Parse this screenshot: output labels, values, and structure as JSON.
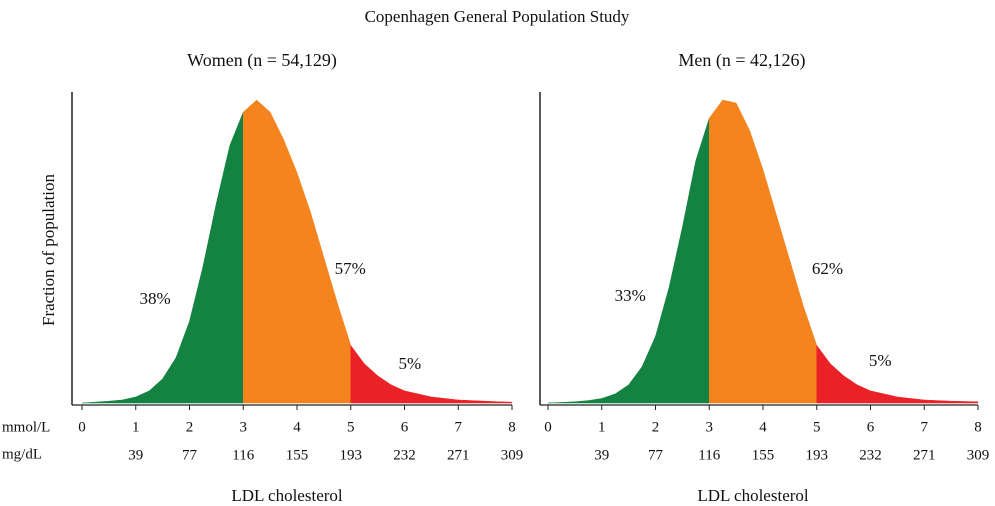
{
  "title": "Copenhagen General Population Study",
  "chart_data": [
    {
      "type": "area",
      "title": "Women (n = 54,129)",
      "y_label": "Fraction of population",
      "x_label": "LDL cholesterol",
      "x_unit_label": "mmol/L",
      "secondary_label": "mg/dL",
      "x": [
        0,
        0.25,
        0.5,
        0.75,
        1,
        1.25,
        1.5,
        1.75,
        2,
        2.25,
        2.5,
        2.75,
        3,
        3.25,
        3.5,
        3.75,
        4,
        4.25,
        4.5,
        4.75,
        5,
        5.25,
        5.5,
        5.75,
        6,
        6.25,
        6.5,
        6.75,
        7,
        7.25,
        7.5,
        7.75,
        8
      ],
      "values": [
        0,
        0.003,
        0.006,
        0.01,
        0.02,
        0.04,
        0.08,
        0.15,
        0.27,
        0.45,
        0.66,
        0.85,
        0.96,
        1.0,
        0.96,
        0.87,
        0.76,
        0.63,
        0.48,
        0.33,
        0.19,
        0.13,
        0.09,
        0.06,
        0.04,
        0.03,
        0.02,
        0.015,
        0.01,
        0.008,
        0.006,
        0.004,
        0.003
      ],
      "regions": [
        {
          "from": 0,
          "to": 3,
          "color": "#148241",
          "value": 38,
          "value_label": "38%"
        },
        {
          "from": 3,
          "to": 5,
          "color": "#f5841f",
          "value": 57,
          "value_label": "57%"
        },
        {
          "from": 5,
          "to": 8,
          "color": "#ea2227",
          "value": 5,
          "value_label": "5%"
        }
      ],
      "xlim": [
        0,
        8
      ],
      "xticks": [
        0,
        1,
        2,
        3,
        4,
        5,
        6,
        7,
        8
      ],
      "ylim": [
        0,
        1
      ],
      "secondary_ticks": [
        39,
        77,
        116,
        155,
        193,
        232,
        271,
        309
      ]
    },
    {
      "type": "area",
      "title": "Men (n = 42,126)",
      "x_label": "LDL cholesterol",
      "x": [
        0,
        0.25,
        0.5,
        0.75,
        1,
        1.25,
        1.5,
        1.75,
        2,
        2.25,
        2.5,
        2.75,
        3,
        3.25,
        3.5,
        3.75,
        4,
        4.25,
        4.5,
        4.75,
        5,
        5.25,
        5.5,
        5.75,
        6,
        6.25,
        6.5,
        6.75,
        7,
        7.25,
        7.5,
        7.75,
        8
      ],
      "values": [
        0,
        0.002,
        0.004,
        0.008,
        0.015,
        0.03,
        0.06,
        0.12,
        0.22,
        0.38,
        0.58,
        0.8,
        0.94,
        1.0,
        0.99,
        0.9,
        0.77,
        0.62,
        0.47,
        0.32,
        0.19,
        0.13,
        0.09,
        0.06,
        0.04,
        0.03,
        0.02,
        0.015,
        0.01,
        0.008,
        0.006,
        0.005,
        0.004
      ],
      "regions": [
        {
          "from": 0,
          "to": 3,
          "color": "#148241",
          "value": 33,
          "value_label": "33%"
        },
        {
          "from": 3,
          "to": 5,
          "color": "#f5841f",
          "value": 62,
          "value_label": "62%"
        },
        {
          "from": 5,
          "to": 8,
          "color": "#ea2227",
          "value": 5,
          "value_label": "5%"
        }
      ],
      "xlim": [
        0,
        8
      ],
      "xticks": [
        0,
        1,
        2,
        3,
        4,
        5,
        6,
        7,
        8
      ],
      "ylim": [
        0,
        1
      ],
      "secondary_ticks": [
        39,
        77,
        116,
        155,
        193,
        232,
        271,
        309
      ]
    }
  ]
}
